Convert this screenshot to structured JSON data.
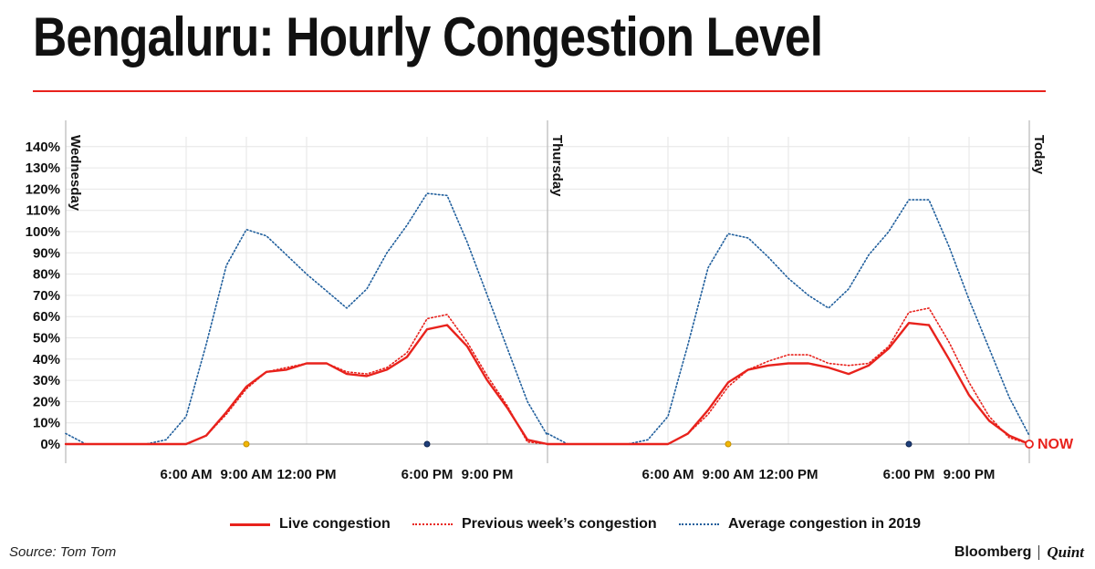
{
  "title": "Bengaluru: Hourly Congestion Level",
  "source": "Source: Tom Tom",
  "brand": {
    "primary": "Bloomberg",
    "secondary": "Quint"
  },
  "colors": {
    "live": "#e8221c",
    "previous": "#e8221c",
    "average": "#1f5e9c",
    "rule": "#e8221c",
    "now": "#e8221c",
    "grid": "#e6e6e6"
  },
  "chart_data": {
    "type": "line",
    "x_unit": "hour",
    "y_tick_labels": [
      "0%",
      "10%",
      "20%",
      "30%",
      "40%",
      "50%",
      "60%",
      "70%",
      "80%",
      "90%",
      "100%",
      "110%",
      "120%",
      "130%",
      "140%"
    ],
    "ylim": [
      0,
      145
    ],
    "grid": true,
    "legend_position": "bottom",
    "x_tick_labels": [
      "6:00 AM",
      "9:00 AM",
      "12:00 PM",
      "6:00 PM",
      "9:00 PM"
    ],
    "x_tick_hours": [
      6,
      9,
      12,
      18,
      21
    ],
    "day_labels": [
      "Wednesday",
      "Thursday",
      "Today"
    ],
    "now_label": "NOW",
    "series": [
      {
        "name": "Live congestion",
        "style": "solid",
        "panels": [
          {
            "x": [
              0,
              1,
              2,
              3,
              4,
              5,
              6,
              7,
              8,
              9,
              10,
              11,
              12,
              13,
              14,
              15,
              16,
              17,
              18,
              19,
              20,
              21,
              22,
              23,
              24
            ],
            "y": [
              0,
              0,
              0,
              0,
              0,
              0,
              0,
              4,
              15,
              27,
              34,
              35,
              38,
              38,
              33,
              32,
              35,
              41,
              54,
              56,
              46,
              30,
              17,
              2,
              0
            ]
          },
          {
            "x": [
              0,
              1,
              2,
              3,
              4,
              5,
              6,
              7,
              8,
              9,
              10,
              11,
              12,
              13,
              14,
              15,
              16,
              17,
              18,
              19,
              20,
              21,
              22,
              23,
              24
            ],
            "y": [
              0,
              0,
              0,
              0,
              0,
              0,
              0,
              5,
              16,
              29,
              35,
              37,
              38,
              38,
              36,
              33,
              37,
              45,
              57,
              56,
              40,
              23,
              11,
              4,
              0
            ]
          }
        ]
      },
      {
        "name": "Previous week’s congestion",
        "style": "dotted",
        "panels": [
          {
            "x": [
              0,
              1,
              2,
              3,
              4,
              5,
              6,
              7,
              8,
              9,
              10,
              11,
              12,
              13,
              14,
              15,
              16,
              17,
              18,
              19,
              20,
              21,
              22,
              23,
              24
            ],
            "y": [
              0,
              0,
              0,
              0,
              0,
              0,
              0,
              4,
              14,
              26,
              34,
              36,
              38,
              38,
              34,
              33,
              36,
              43,
              59,
              61,
              48,
              32,
              18,
              1,
              0
            ]
          },
          {
            "x": [
              0,
              1,
              2,
              3,
              4,
              5,
              6,
              7,
              8,
              9,
              10,
              11,
              12,
              13,
              14,
              15,
              16,
              17,
              18,
              19,
              20,
              21,
              22,
              23,
              24
            ],
            "y": [
              0,
              0,
              0,
              0,
              0,
              0,
              0,
              5,
              14,
              27,
              35,
              39,
              42,
              42,
              38,
              37,
              38,
              46,
              62,
              64,
              48,
              29,
              13,
              3,
              0
            ]
          }
        ]
      },
      {
        "name": "Average congestion in 2019",
        "style": "dotted",
        "panels": [
          {
            "x": [
              0,
              1,
              2,
              3,
              4,
              5,
              6,
              7,
              8,
              9,
              10,
              11,
              12,
              13,
              14,
              15,
              16,
              17,
              18,
              19,
              20,
              21,
              22,
              23,
              24
            ],
            "y": [
              5,
              0,
              0,
              0,
              0,
              2,
              13,
              47,
              84,
              101,
              98,
              89,
              80,
              72,
              64,
              73,
              90,
              103,
              118,
              117,
              95,
              70,
              45,
              20,
              4
            ]
          },
          {
            "x": [
              0,
              1,
              2,
              3,
              4,
              5,
              6,
              7,
              8,
              9,
              10,
              11,
              12,
              13,
              14,
              15,
              16,
              17,
              18,
              19,
              20,
              21,
              22,
              23,
              24
            ],
            "y": [
              5,
              0,
              0,
              0,
              0,
              2,
              13,
              47,
              83,
              99,
              97,
              88,
              78,
              70,
              64,
              73,
              89,
              100,
              115,
              115,
              93,
              68,
              45,
              22,
              4
            ]
          }
        ]
      }
    ]
  }
}
